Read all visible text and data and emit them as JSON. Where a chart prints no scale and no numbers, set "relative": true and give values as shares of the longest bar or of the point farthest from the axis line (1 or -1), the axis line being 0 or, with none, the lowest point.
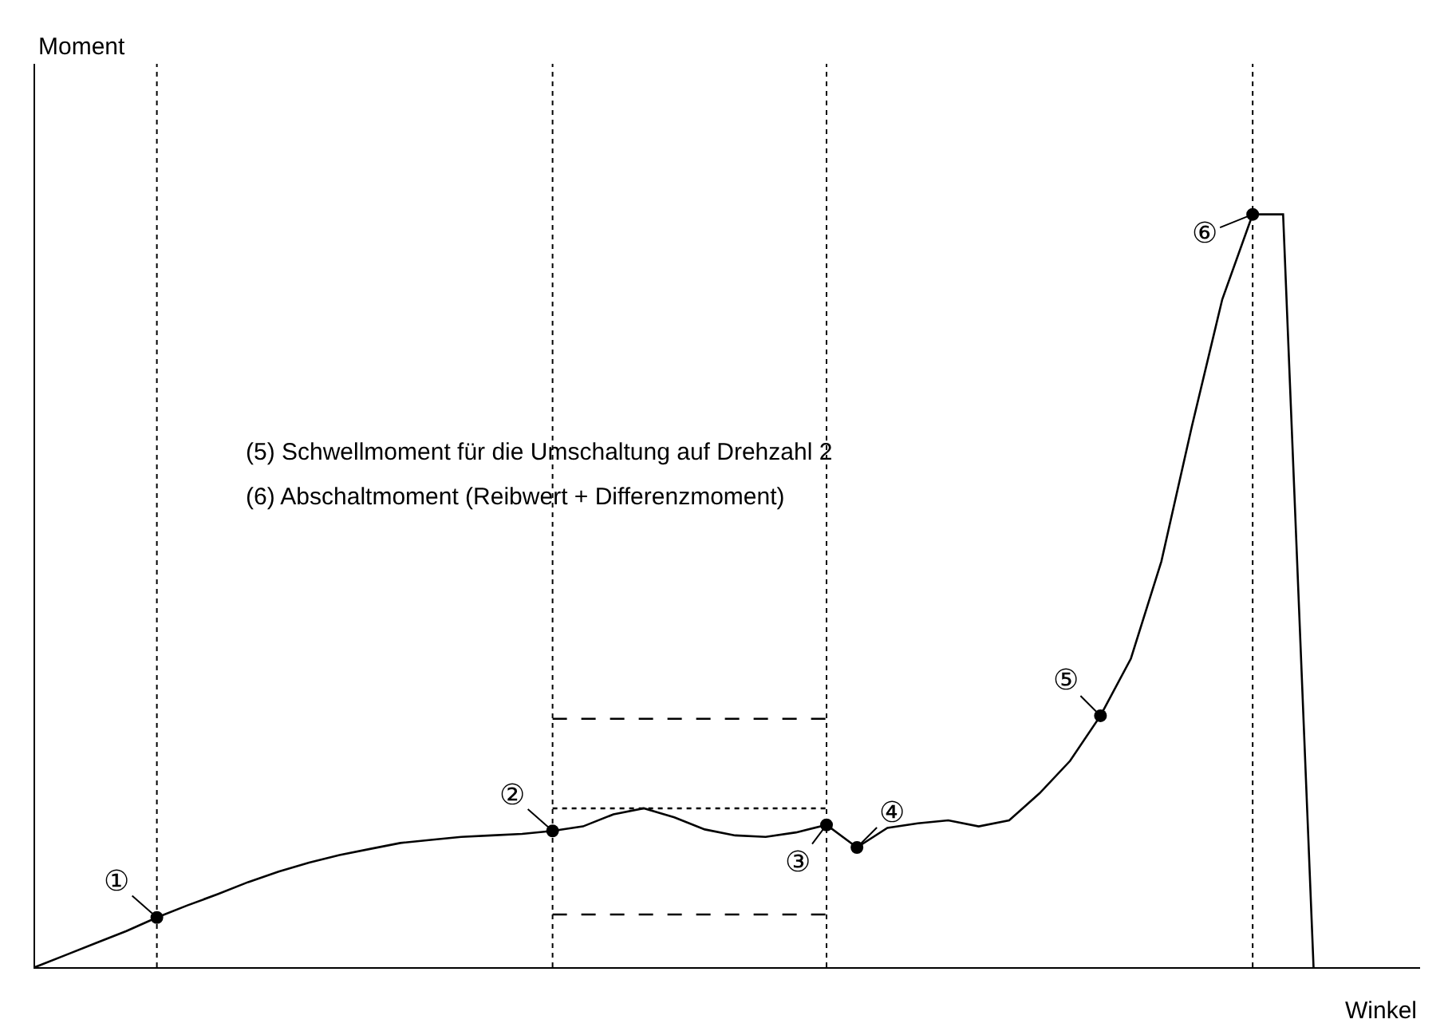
{
  "chart_data": {
    "type": "line",
    "relative": true,
    "xlabel": "Winkel",
    "categories": [
      null,
      null,
      null,
      null,
      null,
      null,
      null,
      null,
      null,
      null,
      null,
      null,
      null,
      null,
      null,
      null,
      null,
      null,
      null,
      null,
      null,
      null,
      null,
      null,
      null,
      null,
      null,
      null,
      null,
      null,
      null,
      null,
      null,
      null,
      null,
      null,
      null,
      null,
      null,
      null,
      null,
      null,
      null
    ],
    "series": [
      {
        "color": "#000000",
        "values": [
          0,
          0.016,
          0.032,
          0.048,
          0.066,
          0.082,
          0.097,
          0.113,
          0.127,
          0.139,
          0.149,
          0.157,
          0.165,
          0.169,
          0.173,
          0.175,
          0.177,
          0.181,
          0.187,
          0.203,
          0.211,
          0.199,
          0.183,
          0.175,
          0.173,
          0.179,
          0.189,
          0.159,
          0.185,
          0.191,
          0.195,
          0.187,
          0.195,
          0.231,
          0.274,
          0.334,
          0.41,
          0.539,
          0.718,
          0.887,
          1,
          1,
          0
        ]
      },
      {
        "color": "#000000",
        "line_style": "dashed",
        "values": [
          null,
          null,
          null,
          null,
          null,
          null,
          null,
          null,
          null,
          null,
          null,
          null,
          null,
          null,
          null,
          null,
          null,
          0.33,
          0.33,
          0.33,
          0.33,
          0.33,
          0.33,
          0.33,
          0.33,
          0.33,
          0.33,
          null,
          null,
          null,
          null,
          null,
          null,
          null,
          null,
          null,
          null,
          null,
          null,
          null,
          null,
          null,
          null
        ]
      },
      {
        "color": "#000000",
        "line_style": "dotted",
        "values": [
          null,
          null,
          null,
          null,
          null,
          null,
          null,
          null,
          null,
          null,
          null,
          null,
          null,
          null,
          null,
          null,
          null,
          0.211,
          0.211,
          0.211,
          0.211,
          0.211,
          0.211,
          0.211,
          0.211,
          0.211,
          0.211,
          null,
          null,
          null,
          null,
          null,
          null,
          null,
          null,
          null,
          null,
          null,
          null,
          null,
          null,
          null,
          null
        ]
      },
      {
        "color": "#000000",
        "line_style": "dashed",
        "values": [
          null,
          null,
          null,
          null,
          null,
          null,
          null,
          null,
          null,
          null,
          null,
          null,
          null,
          null,
          null,
          null,
          null,
          0.07,
          0.07,
          0.07,
          0.07,
          0.07,
          0.07,
          0.07,
          0.07,
          0.07,
          0.07,
          null,
          null,
          null,
          null,
          null,
          null,
          null,
          null,
          null,
          null,
          null,
          null,
          null,
          null,
          null,
          null
        ]
      }
    ],
    "annotations": [
      "①",
      "②",
      "③",
      "④",
      "⑤",
      "⑥",
      "Moment",
      "(5) Schwellmoment für die Umschaltung auf Drehzahl 2",
      "(6) Abschaltmoment (Reibwert + Differenzmoment)"
    ]
  }
}
